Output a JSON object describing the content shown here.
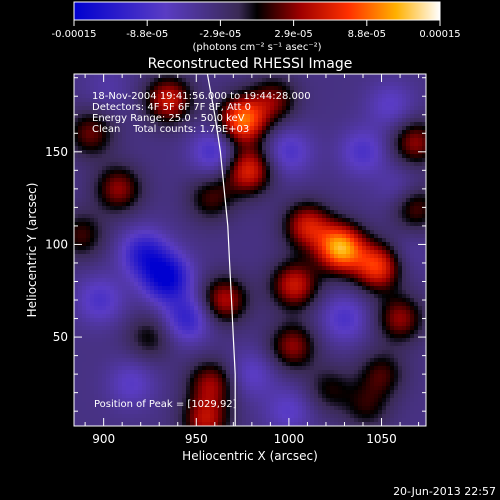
{
  "colorbar": {
    "tick_labels": [
      "-0.00015",
      "-8.8e-05",
      "-2.9e-05",
      "2.9e-05",
      "8.8e-05",
      "0.00015"
    ],
    "unit_label": "(photons cm⁻² s⁻¹ asec⁻²)",
    "range": [
      -0.00015,
      0.00015
    ]
  },
  "chart_data": {
    "type": "heatmap",
    "title": "Reconstructed RHESSI Image",
    "xlabel": "Heliocentric X (arcsec)",
    "ylabel": "Heliocentric Y (arcsec)",
    "xlim": [
      884,
      1074
    ],
    "ylim": [
      2,
      192
    ],
    "x_ticks": [
      900,
      950,
      1000,
      1050
    ],
    "y_ticks": [
      50,
      100,
      150
    ],
    "info_lines": [
      "18-Nov-2004 19:41:56.000 to 19:44:28.000",
      "Detectors: 4F 5F 6F 7F 8F, Att 0",
      "Energy Range: 25.0 - 50.0 keV",
      "Clean    Total counts: 1.76E+03"
    ],
    "peak_label": "Position of Peak = [1029,92]",
    "peak": [
      1029,
      92
    ],
    "sources": [
      {
        "x": 1028,
        "y": 98,
        "value": 0.00014
      },
      {
        "x": 1048,
        "y": 88,
        "value": 0.0001
      },
      {
        "x": 1010,
        "y": 110,
        "value": 8e-05
      },
      {
        "x": 1003,
        "y": 78,
        "value": 8e-05
      },
      {
        "x": 1002,
        "y": 45,
        "value": 6e-05
      },
      {
        "x": 975,
        "y": 167,
        "value": 0.00012
      },
      {
        "x": 978,
        "y": 140,
        "value": 9e-05
      },
      {
        "x": 992,
        "y": 178,
        "value": 5e-05
      },
      {
        "x": 1068,
        "y": 155,
        "value": 6e-05
      },
      {
        "x": 1060,
        "y": 60,
        "value": 6e-05
      },
      {
        "x": 1068,
        "y": 120,
        "value": 5e-05
      },
      {
        "x": 1050,
        "y": 30,
        "value": 4e-05
      },
      {
        "x": 1042,
        "y": 12,
        "value": 3e-05
      },
      {
        "x": 935,
        "y": 178,
        "value": 8e-05
      },
      {
        "x": 908,
        "y": 130,
        "value": 6e-05
      },
      {
        "x": 893,
        "y": 160,
        "value": 5e-05
      },
      {
        "x": 888,
        "y": 105,
        "value": 4e-05
      },
      {
        "x": 958,
        "y": 125,
        "value": 4e-05
      },
      {
        "x": 965,
        "y": 70,
        "value": 7e-05
      },
      {
        "x": 958,
        "y": 25,
        "value": 6e-05
      },
      {
        "x": 955,
        "y": 5,
        "value": 7e-05
      },
      {
        "x": 925,
        "y": 50,
        "value": 3e-05
      },
      {
        "x": 1022,
        "y": 22,
        "value": 3e-05
      },
      {
        "x": 922,
        "y": 95,
        "value": -9e-05
      },
      {
        "x": 934,
        "y": 82,
        "value": -0.00012
      },
      {
        "x": 945,
        "y": 60,
        "value": -8e-05
      },
      {
        "x": 898,
        "y": 70,
        "value": -6e-05
      },
      {
        "x": 960,
        "y": 150,
        "value": -7e-05
      },
      {
        "x": 1000,
        "y": 150,
        "value": -6e-05
      },
      {
        "x": 1040,
        "y": 150,
        "value": -6e-05
      },
      {
        "x": 1060,
        "y": 130,
        "value": -4e-05
      },
      {
        "x": 1030,
        "y": 60,
        "value": -6e-05
      },
      {
        "x": 980,
        "y": 30,
        "value": -5e-05
      },
      {
        "x": 1000,
        "y": 10,
        "value": -5e-05
      },
      {
        "x": 915,
        "y": 25,
        "value": -5e-05
      },
      {
        "x": 1063,
        "y": 95,
        "value": -3e-05
      },
      {
        "x": 1055,
        "y": 175,
        "value": -5e-05
      },
      {
        "x": 902,
        "y": 185,
        "value": -3e-05
      }
    ],
    "limb_curve": [
      [
        956,
        192
      ],
      [
        960,
        170
      ],
      [
        963,
        150
      ],
      [
        965,
        130
      ],
      [
        967,
        110
      ],
      [
        968,
        90
      ],
      [
        969,
        70
      ],
      [
        970,
        50
      ],
      [
        971,
        30
      ],
      [
        971,
        2
      ]
    ]
  },
  "footer": {
    "date": "20-Jun-2013 22:57"
  }
}
